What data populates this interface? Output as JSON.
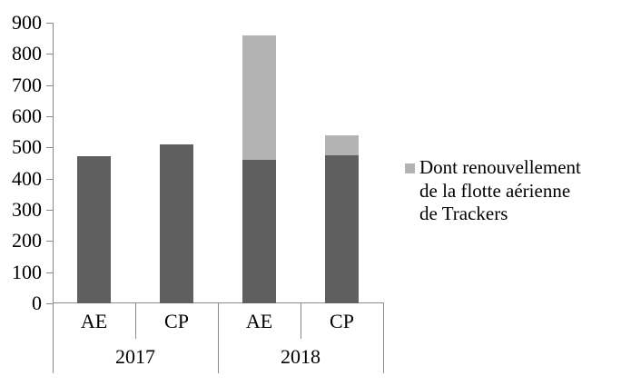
{
  "chart_data": {
    "type": "bar",
    "stacked": true,
    "title": "",
    "xlabel": "",
    "ylabel": "",
    "categories": [
      "AE",
      "CP",
      "AE",
      "CP"
    ],
    "group_labels": [
      "2017",
      "2018"
    ],
    "series": [
      {
        "name": "",
        "color": "#5f5f5f",
        "values": [
          471,
          509,
          459,
          475
        ]
      },
      {
        "name": "Dont renouvellement de la flotte aérienne de Trackers",
        "color": "#b3b3b3",
        "values": [
          0,
          0,
          400,
          64
        ]
      }
    ],
    "totals": [
      471,
      509,
      859,
      539
    ],
    "ylim": [
      0,
      900
    ],
    "yticks": [
      0,
      100,
      200,
      300,
      400,
      500,
      600,
      700,
      800,
      900
    ],
    "grid": false,
    "legend_position": "right",
    "legend": {
      "marker_color": "#b3b3b3",
      "lines": [
        "Dont renouvellement",
        "de la flotte aérienne",
        "de Trackers"
      ]
    }
  },
  "colors": {
    "axis_line": "#8a8a8a",
    "text": "#000000",
    "background": "#ffffff"
  }
}
